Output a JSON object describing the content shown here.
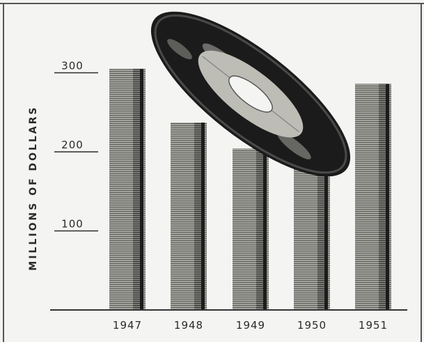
{
  "chart_data": {
    "type": "bar",
    "title": "",
    "xlabel": "",
    "ylabel": "MILLIONS OF DOLLARS",
    "categories": [
      "1947",
      "1948",
      "1949",
      "1950",
      "1951"
    ],
    "values": [
      305,
      237,
      204,
      219,
      286
    ],
    "ylim": [
      0,
      340
    ],
    "yticks": [
      100,
      200,
      300
    ],
    "ytick_labels": [
      "100",
      "200",
      "300"
    ],
    "grid": false,
    "legend": "none",
    "colors": {
      "background": "#f4f4f2",
      "bar_light": "#9a9a96",
      "bar_dark": "#1c1c1c",
      "ink": "#2a2a2a",
      "record_label": "#bdbdb6"
    },
    "decoration": "phonograph-record-icon"
  }
}
